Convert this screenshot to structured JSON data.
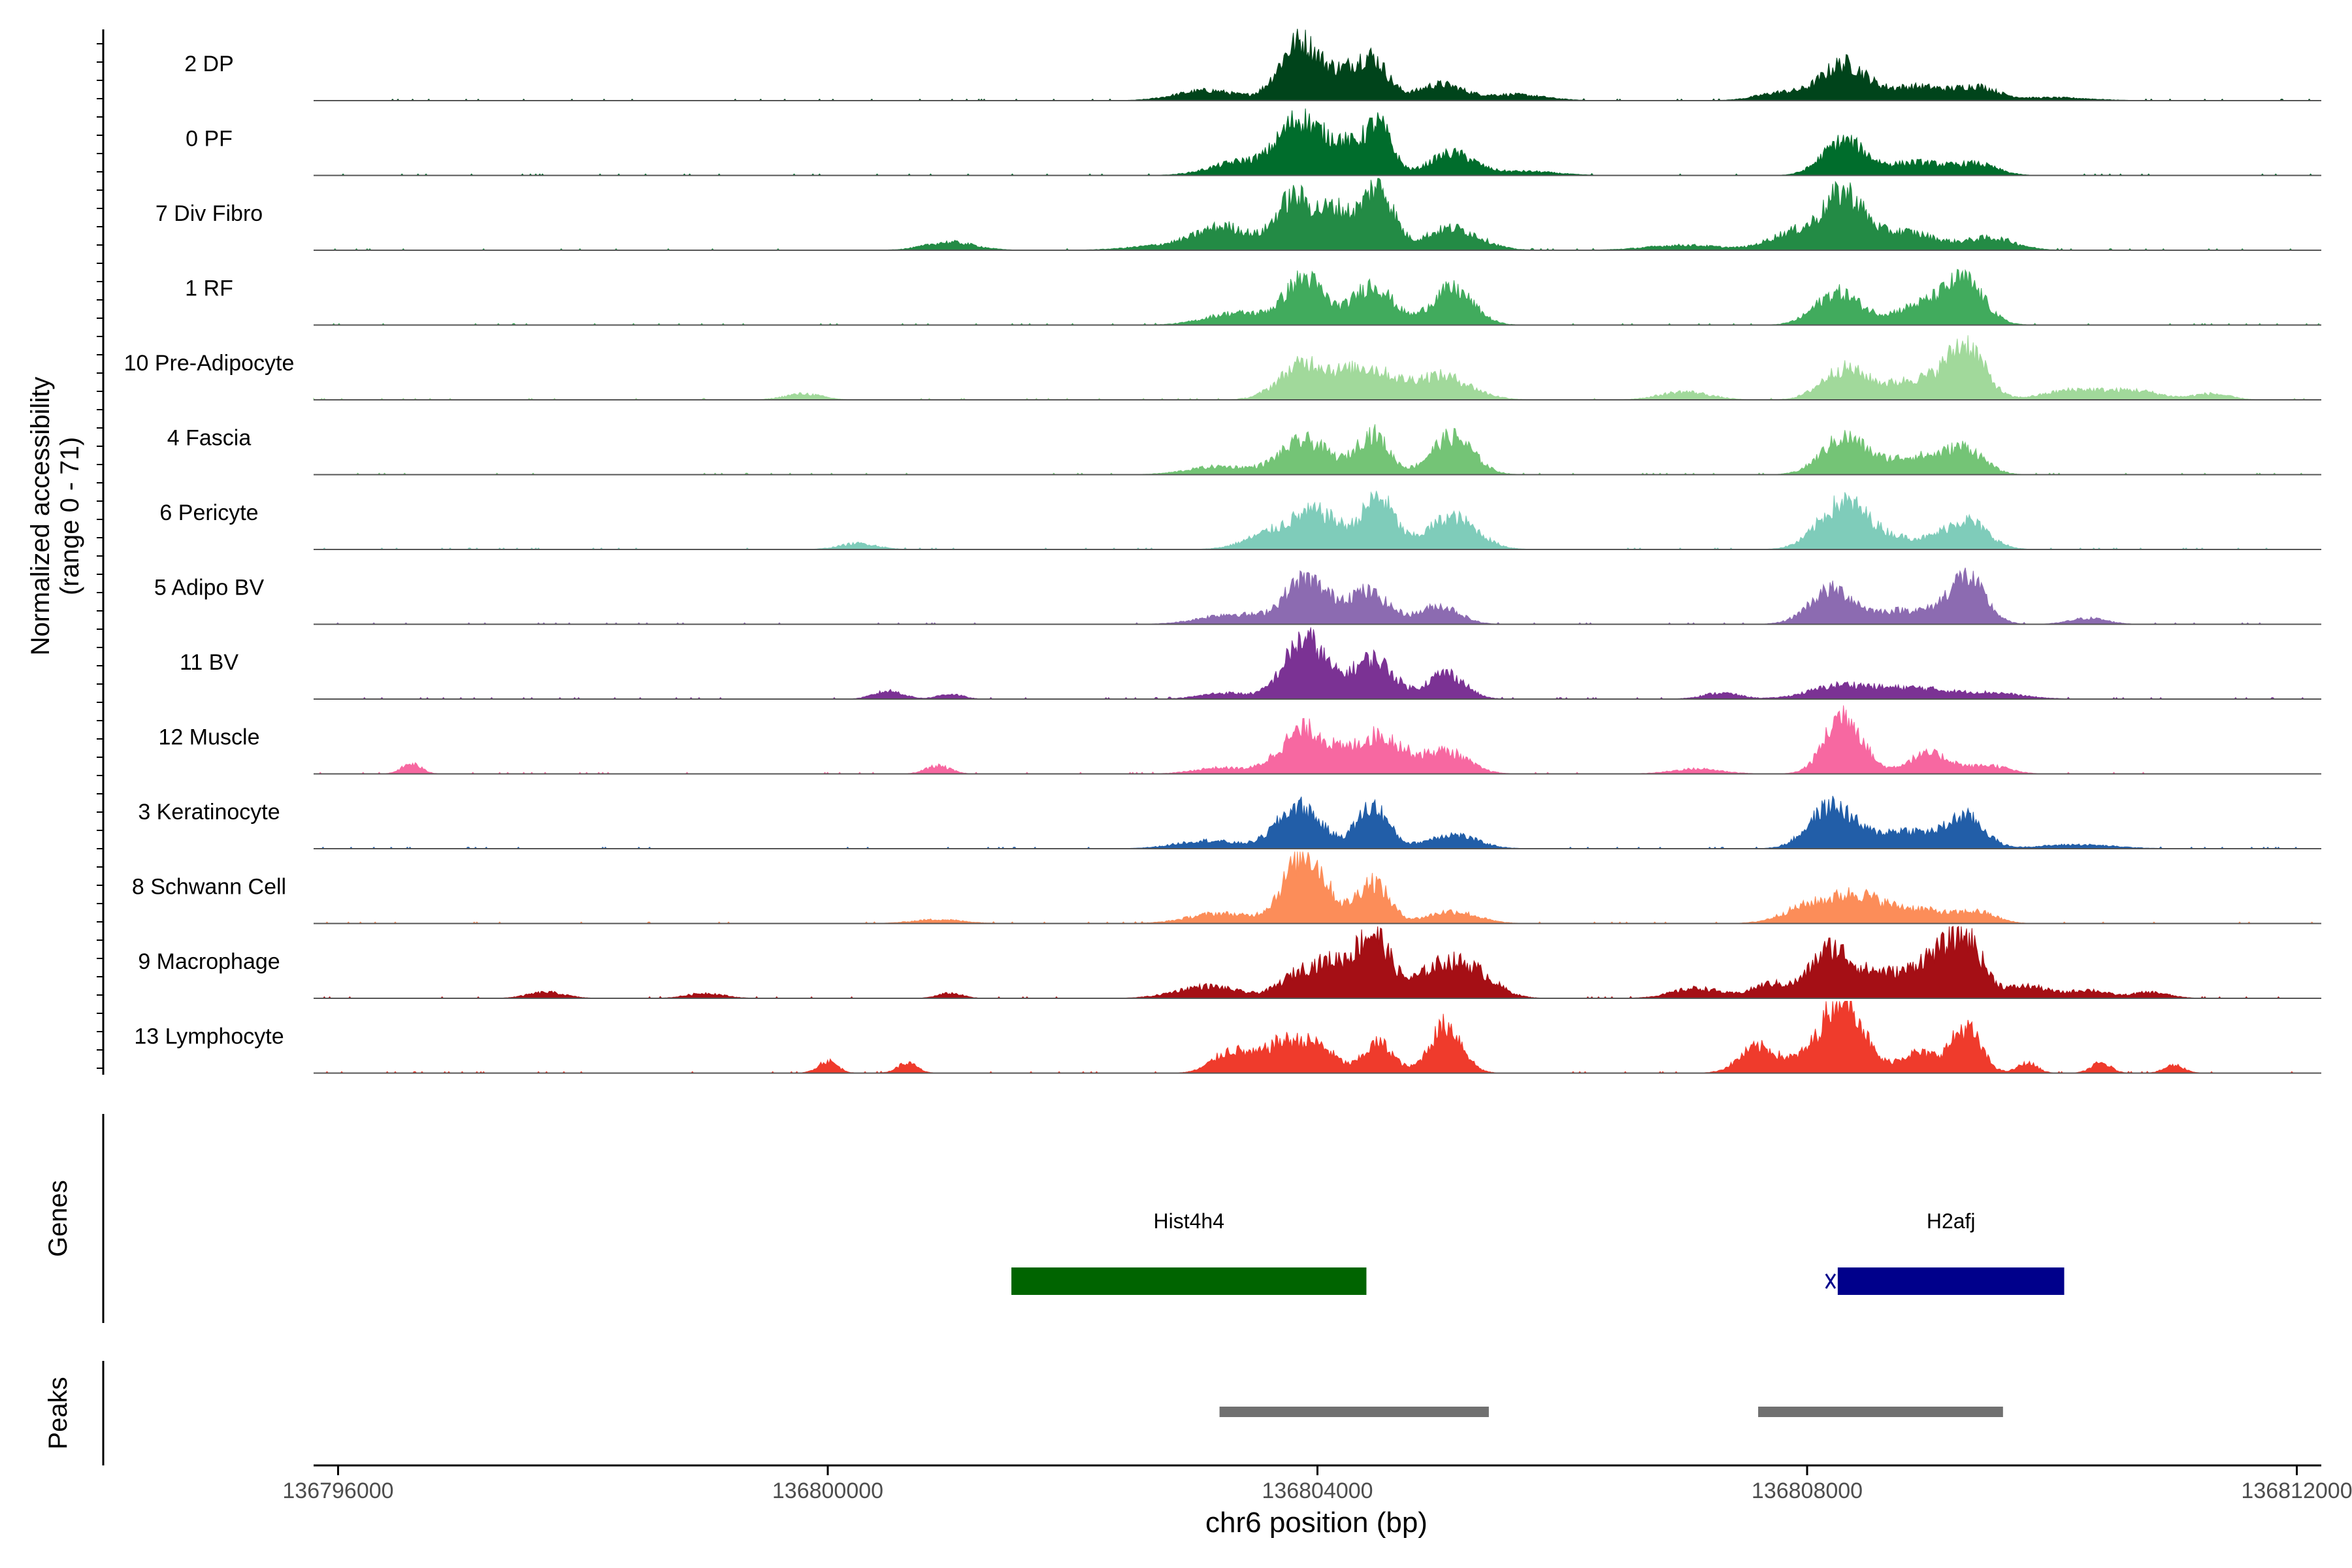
{
  "chart_data": {
    "type": "area",
    "title": "",
    "ylabel_line1": "Normalized accessibility",
    "ylabel_line2": "(range 0 - 71)",
    "xlabel": "chr6 position (bp)",
    "xlim": [
      136795800,
      136812200
    ],
    "ylim": [
      0,
      71
    ],
    "x_ticks": [
      {
        "value": 136796000,
        "label": "136796000"
      },
      {
        "value": 136800000,
        "label": "136800000"
      },
      {
        "value": 136804000,
        "label": "136804000"
      },
      {
        "value": 136808000,
        "label": "136808000"
      },
      {
        "value": 136812000,
        "label": "136812000"
      }
    ],
    "series": [
      {
        "name": "2 DP",
        "color": "#00441b",
        "peaks": [
          [
            136803100,
            10,
            250
          ],
          [
            136803850,
            58,
            160
          ],
          [
            136804200,
            22,
            150
          ],
          [
            136804450,
            38,
            130
          ],
          [
            136805000,
            16,
            180
          ],
          [
            136805600,
            6,
            250
          ],
          [
            136807800,
            8,
            200
          ],
          [
            136808300,
            36,
            180
          ],
          [
            136808900,
            14,
            250
          ],
          [
            136809400,
            12,
            160
          ],
          [
            136810000,
            3,
            300
          ]
        ]
      },
      {
        "name": "0 PF",
        "color": "#006d2c",
        "peaks": [
          [
            136803400,
            14,
            250
          ],
          [
            136803850,
            52,
            160
          ],
          [
            136804200,
            30,
            150
          ],
          [
            136804500,
            48,
            110
          ],
          [
            136805100,
            22,
            180
          ],
          [
            136805700,
            4,
            250
          ],
          [
            136808300,
            34,
            170
          ],
          [
            136808900,
            13,
            250
          ],
          [
            136809400,
            10,
            160
          ]
        ]
      },
      {
        "name": "7 Div Fibro",
        "color": "#238b45",
        "peaks": [
          [
            136801000,
            8,
            200
          ],
          [
            136802800,
            5,
            300
          ],
          [
            136803250,
            22,
            220
          ],
          [
            136803800,
            50,
            140
          ],
          [
            136804150,
            40,
            150
          ],
          [
            136804500,
            62,
            120
          ],
          [
            136805100,
            22,
            220
          ],
          [
            136807000,
            5,
            300
          ],
          [
            136807900,
            18,
            200
          ],
          [
            136808300,
            54,
            160
          ],
          [
            136808800,
            18,
            250
          ],
          [
            136809500,
            12,
            200
          ]
        ]
      },
      {
        "name": "1 RF",
        "color": "#41ab5d",
        "peaks": [
          [
            136803350,
            12,
            250
          ],
          [
            136803900,
            46,
            160
          ],
          [
            136804450,
            40,
            160
          ],
          [
            136805100,
            36,
            170
          ],
          [
            136808250,
            32,
            180
          ],
          [
            136809000,
            22,
            260
          ],
          [
            136809300,
            34,
            150
          ]
        ]
      },
      {
        "name": "10 Pre-Adipocyte",
        "color": "#a1d99b",
        "peaks": [
          [
            136799800,
            6,
            150
          ],
          [
            136803900,
            36,
            200
          ],
          [
            136804400,
            30,
            200
          ],
          [
            136805000,
            24,
            240
          ],
          [
            136807000,
            8,
            200
          ],
          [
            136808300,
            30,
            180
          ],
          [
            136808900,
            20,
            260
          ],
          [
            136809300,
            50,
            150
          ],
          [
            136810200,
            10,
            250
          ],
          [
            136810700,
            8,
            200
          ],
          [
            136811300,
            6,
            150
          ]
        ]
      },
      {
        "name": "4 Fascia",
        "color": "#74c476",
        "peaks": [
          [
            136803200,
            8,
            250
          ],
          [
            136803900,
            34,
            200
          ],
          [
            136804450,
            40,
            130
          ],
          [
            136805100,
            38,
            170
          ],
          [
            136808300,
            36,
            180
          ],
          [
            136808900,
            18,
            260
          ],
          [
            136809300,
            22,
            150
          ]
        ]
      },
      {
        "name": "6 Pericyte",
        "color": "#7fccba",
        "peaks": [
          [
            136800250,
            6,
            150
          ],
          [
            136803600,
            14,
            200
          ],
          [
            136804000,
            36,
            200
          ],
          [
            136804500,
            50,
            130
          ],
          [
            136805100,
            32,
            200
          ],
          [
            136808300,
            46,
            200
          ],
          [
            136808800,
            10,
            250
          ],
          [
            136809300,
            28,
            170
          ]
        ]
      },
      {
        "name": "5 Adipo BV",
        "color": "#8c6bb1",
        "peaks": [
          [
            136803300,
            10,
            250
          ],
          [
            136803900,
            44,
            170
          ],
          [
            136804400,
            32,
            180
          ],
          [
            136805000,
            18,
            160
          ],
          [
            136808200,
            34,
            180
          ],
          [
            136808800,
            14,
            250
          ],
          [
            136809300,
            46,
            150
          ],
          [
            136810300,
            6,
            150
          ]
        ]
      },
      {
        "name": "11 BV",
        "color": "#7b3294",
        "peaks": [
          [
            136800500,
            8,
            120
          ],
          [
            136801000,
            5,
            100
          ],
          [
            136803250,
            6,
            200
          ],
          [
            136803900,
            60,
            170
          ],
          [
            136804450,
            40,
            170
          ],
          [
            136805050,
            26,
            150
          ],
          [
            136807300,
            6,
            150
          ],
          [
            136808300,
            14,
            260
          ],
          [
            136808900,
            10,
            250
          ],
          [
            136809500,
            6,
            250
          ]
        ]
      },
      {
        "name": "12 Muscle",
        "color": "#f768a1",
        "peaks": [
          [
            136796600,
            10,
            80
          ],
          [
            136800900,
            8,
            100
          ],
          [
            136803200,
            6,
            200
          ],
          [
            136803900,
            44,
            200
          ],
          [
            136804500,
            38,
            200
          ],
          [
            136805050,
            22,
            180
          ],
          [
            136807100,
            5,
            200
          ],
          [
            136808300,
            60,
            150
          ],
          [
            136809000,
            20,
            180
          ],
          [
            136809500,
            8,
            150
          ]
        ]
      },
      {
        "name": "3 Keratinocyte",
        "color": "#225ea8",
        "peaks": [
          [
            136803100,
            8,
            250
          ],
          [
            136803850,
            42,
            180
          ],
          [
            136804450,
            42,
            130
          ],
          [
            136805100,
            14,
            200
          ],
          [
            136808200,
            42,
            180
          ],
          [
            136808800,
            18,
            250
          ],
          [
            136809300,
            30,
            150
          ],
          [
            136810200,
            4,
            300
          ]
        ]
      },
      {
        "name": "8 Schwann Cell",
        "color": "#fc8d59",
        "peaks": [
          [
            136800900,
            4,
            200
          ],
          [
            136803200,
            10,
            250
          ],
          [
            136803900,
            70,
            170
          ],
          [
            136804450,
            42,
            130
          ],
          [
            136805100,
            12,
            200
          ],
          [
            136808000,
            16,
            200
          ],
          [
            136808400,
            26,
            200
          ],
          [
            136808900,
            14,
            250
          ],
          [
            136809400,
            10,
            150
          ]
        ]
      },
      {
        "name": "9 Macrophage",
        "color": "#a50f15",
        "peaks": [
          [
            136797700,
            6,
            150
          ],
          [
            136799000,
            5,
            150
          ],
          [
            136801000,
            5,
            100
          ],
          [
            136803100,
            12,
            250
          ],
          [
            136803900,
            28,
            180
          ],
          [
            136804150,
            22,
            120
          ],
          [
            136804450,
            64,
            140
          ],
          [
            136805000,
            30,
            200
          ],
          [
            136805300,
            20,
            180
          ],
          [
            136807100,
            10,
            200
          ],
          [
            136807700,
            14,
            150
          ],
          [
            136808200,
            50,
            170
          ],
          [
            136808600,
            22,
            150
          ],
          [
            136809000,
            38,
            170
          ],
          [
            136809300,
            55,
            140
          ],
          [
            136809800,
            12,
            180
          ],
          [
            136810300,
            8,
            150
          ],
          [
            136810800,
            6,
            150
          ]
        ]
      },
      {
        "name": "13 Lymphocyte",
        "color": "#ef3b2c",
        "peaks": [
          [
            136800000,
            12,
            80
          ],
          [
            136800650,
            10,
            80
          ],
          [
            136803300,
            22,
            150
          ],
          [
            136803700,
            28,
            150
          ],
          [
            136804000,
            26,
            150
          ],
          [
            136804500,
            30,
            120
          ],
          [
            136805050,
            48,
            130
          ],
          [
            136807600,
            26,
            150
          ],
          [
            136808000,
            14,
            150
          ],
          [
            136808300,
            80,
            150
          ],
          [
            136808900,
            20,
            170
          ],
          [
            136809300,
            44,
            120
          ],
          [
            136809800,
            10,
            80
          ],
          [
            136810400,
            10,
            80
          ],
          [
            136811000,
            8,
            80
          ]
        ]
      }
    ],
    "genes": {
      "title": "Genes",
      "items": [
        {
          "name": "Hist4h4",
          "start": 136801500,
          "end": 136804400,
          "color": "#006400"
        },
        {
          "name": "H2afj",
          "start": 136808250,
          "end": 136810100,
          "color": "#00008b"
        }
      ]
    },
    "peaks": {
      "title": "Peaks",
      "items": [
        {
          "start": 136803200,
          "end": 136805400,
          "color": "#707070"
        },
        {
          "start": 136807600,
          "end": 136809600,
          "color": "#707070"
        }
      ]
    }
  }
}
